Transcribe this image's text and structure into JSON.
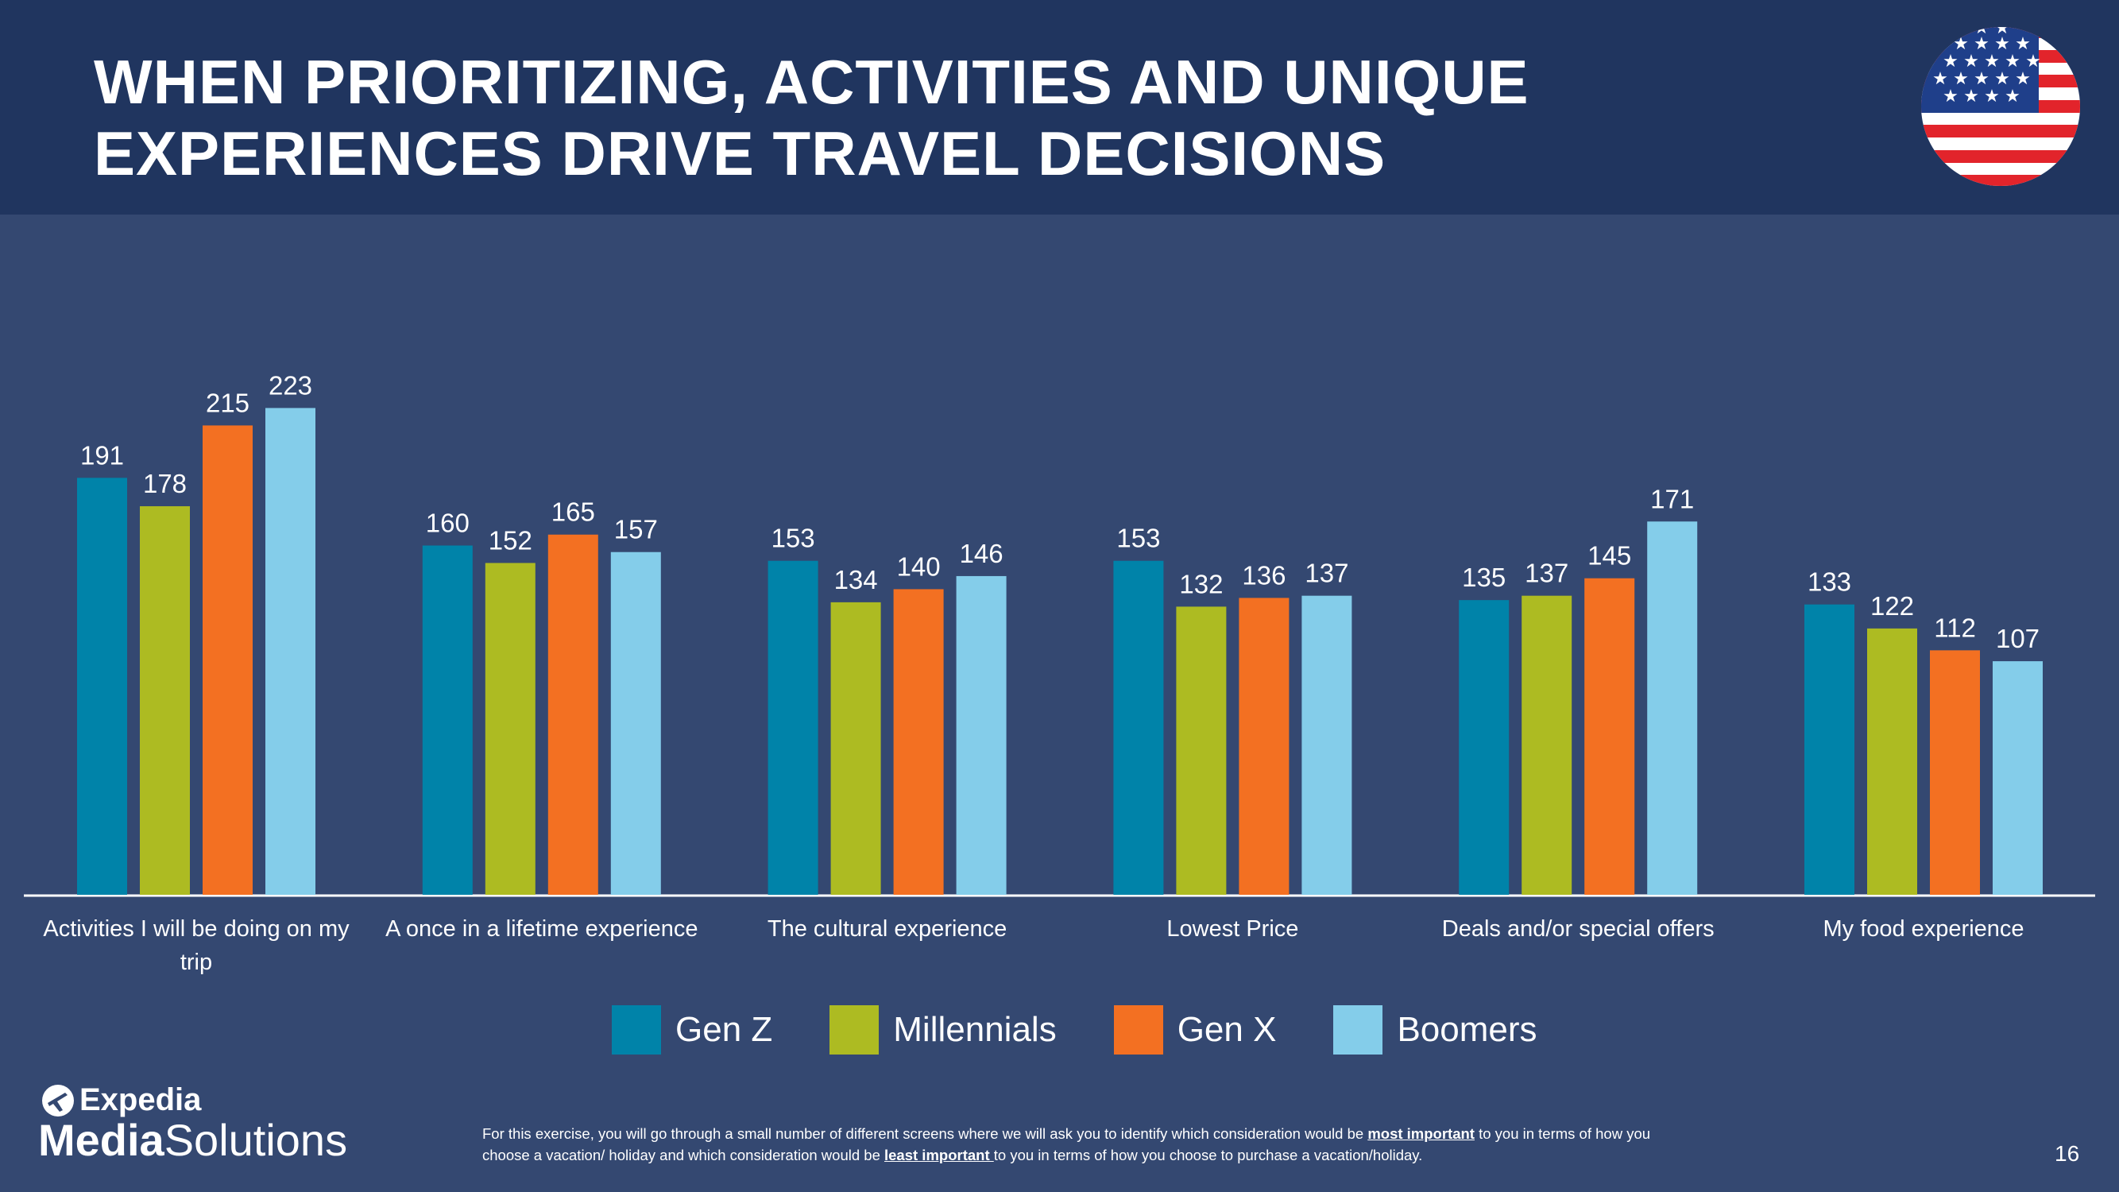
{
  "header": {
    "title_line1": "WHEN PRIORITIZING, ACTIVITIES AND UNIQUE",
    "title_line2": "EXPERIENCES DRIVE TRAVEL DECISIONS",
    "background_color": "#20355f"
  },
  "chart_data": {
    "type": "bar",
    "categories": [
      [
        "Activities I will be doing on my",
        "trip"
      ],
      [
        "A once in a lifetime experience"
      ],
      [
        "The cultural experience"
      ],
      [
        "Lowest Price"
      ],
      [
        "Deals and/or special offers"
      ],
      [
        "My food experience"
      ]
    ],
    "series": [
      {
        "name": "Gen Z",
        "color": "#0083a9",
        "values": [
          191,
          160,
          153,
          153,
          135,
          133
        ]
      },
      {
        "name": "Millennials",
        "color": "#adbb22",
        "values": [
          178,
          152,
          134,
          132,
          137,
          122
        ]
      },
      {
        "name": "Gen X",
        "color": "#f37022",
        "values": [
          215,
          165,
          140,
          136,
          145,
          112
        ]
      },
      {
        "name": "Boomers",
        "color": "#84cdea",
        "values": [
          223,
          157,
          146,
          137,
          171,
          107
        ]
      }
    ],
    "ylim": [
      0,
      230
    ],
    "grid": false,
    "legend_position": "bottom",
    "data_labels": true
  },
  "legend": {
    "items": [
      {
        "label": "Gen Z",
        "color": "#0083a9"
      },
      {
        "label": "Millennials",
        "color": "#adbb22"
      },
      {
        "label": "Gen X",
        "color": "#f37022"
      },
      {
        "label": "Boomers",
        "color": "#84cdea"
      }
    ]
  },
  "logo": {
    "line1": "Expedia",
    "line2_bold": "Media",
    "line2_regular": "Solutions"
  },
  "footnote": {
    "part1": "For this exercise, you will go through a small number of different screens where we will ask you to identify which consideration would be ",
    "emph1": "most important",
    "part2": " to you in terms of how you choose a vacation/ holiday and which consideration would be ",
    "emph2": "least important ",
    "part3": "to you in terms of how you choose to purchase a vacation/holiday."
  },
  "page_number": "16"
}
